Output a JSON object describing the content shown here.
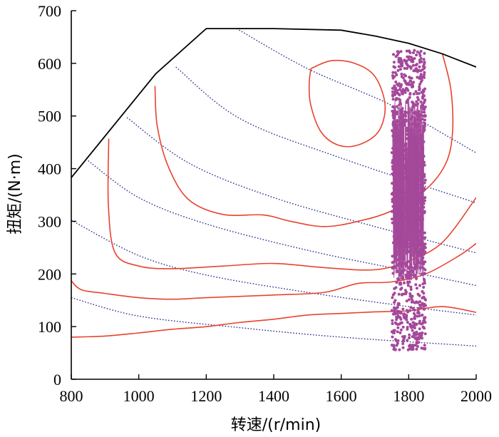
{
  "chart_data": {
    "type": "line",
    "title": "",
    "xlabel": "转速/(r/min)",
    "ylabel": "扭矩/(N·m)",
    "xlim": [
      800,
      2000
    ],
    "ylim": [
      0,
      700
    ],
    "x_ticks": [
      "800",
      "1000",
      "1200",
      "1400",
      "1600",
      "1800",
      "2000"
    ],
    "y_ticks": [
      "0",
      "100",
      "200",
      "300",
      "400",
      "500",
      "600",
      "700"
    ],
    "grid": false,
    "legend": "none",
    "colors": {
      "boundary": "#000000",
      "efficiency_contours": "#e8432e",
      "power_lines": "#2b2f8f",
      "operating_points": "#a4489a"
    },
    "series": [
      {
        "style": "solid-black",
        "kind": "max_torque_boundary",
        "points": [
          [
            800,
            383
          ],
          [
            1050,
            580
          ],
          [
            1200,
            666
          ],
          [
            1400,
            666
          ],
          [
            1600,
            663
          ],
          [
            1700,
            652
          ],
          [
            1800,
            638
          ],
          [
            1900,
            618
          ],
          [
            2000,
            593
          ]
        ]
      },
      {
        "style": "dotted-blue",
        "kind": "power_line",
        "points": [
          [
            1290,
            666
          ],
          [
            1500,
            590
          ],
          [
            1750,
            520
          ],
          [
            2000,
            430
          ]
        ]
      },
      {
        "style": "dotted-blue",
        "kind": "power_line",
        "points": [
          [
            1110,
            593
          ],
          [
            1300,
            495
          ],
          [
            1600,
            420
          ],
          [
            2000,
            335
          ]
        ]
      },
      {
        "style": "dotted-blue",
        "kind": "power_line",
        "points": [
          [
            965,
            497
          ],
          [
            1150,
            410
          ],
          [
            1400,
            345
          ],
          [
            1700,
            290
          ],
          [
            2000,
            240
          ]
        ]
      },
      {
        "style": "dotted-blue",
        "kind": "power_line",
        "points": [
          [
            850,
            415
          ],
          [
            1000,
            345
          ],
          [
            1200,
            295
          ],
          [
            1500,
            245
          ],
          [
            1800,
            205
          ],
          [
            2000,
            178
          ]
        ]
      },
      {
        "style": "dotted-blue",
        "kind": "power_line",
        "points": [
          [
            800,
            302
          ],
          [
            1000,
            235
          ],
          [
            1200,
            198
          ],
          [
            1500,
            165
          ],
          [
            1800,
            138
          ],
          [
            2000,
            122
          ]
        ]
      },
      {
        "style": "dotted-blue",
        "kind": "power_line",
        "points": [
          [
            800,
            155
          ],
          [
            1000,
            120
          ],
          [
            1300,
            98
          ],
          [
            1600,
            80
          ],
          [
            2000,
            63
          ]
        ]
      },
      {
        "style": "solid-red",
        "kind": "efficiency_contour",
        "points": [
          [
            1510,
            590
          ],
          [
            1570,
            605
          ],
          [
            1640,
            600
          ],
          [
            1700,
            575
          ],
          [
            1730,
            520
          ],
          [
            1710,
            470
          ],
          [
            1650,
            445
          ],
          [
            1590,
            445
          ],
          [
            1540,
            470
          ],
          [
            1510,
            520
          ],
          [
            1505,
            560
          ],
          [
            1510,
            590
          ]
        ]
      },
      {
        "style": "solid-red",
        "kind": "efficiency_contour",
        "points": [
          [
            1048,
            557
          ],
          [
            1055,
            480
          ],
          [
            1090,
            400
          ],
          [
            1150,
            340
          ],
          [
            1250,
            313
          ],
          [
            1370,
            312
          ],
          [
            1450,
            300
          ],
          [
            1550,
            290
          ],
          [
            1650,
            300
          ],
          [
            1750,
            320
          ],
          [
            1850,
            360
          ],
          [
            1910,
            410
          ],
          [
            1930,
            470
          ],
          [
            1925,
            550
          ],
          [
            1900,
            618
          ]
        ]
      },
      {
        "style": "solid-red",
        "kind": "efficiency_contour",
        "points": [
          [
            911,
            457
          ],
          [
            910,
            330
          ],
          [
            930,
            240
          ],
          [
            1000,
            215
          ],
          [
            1100,
            210
          ],
          [
            1250,
            215
          ],
          [
            1400,
            220
          ],
          [
            1550,
            212
          ],
          [
            1700,
            208
          ],
          [
            1800,
            225
          ],
          [
            1900,
            260
          ],
          [
            2000,
            345
          ]
        ]
      },
      {
        "style": "solid-red",
        "kind": "efficiency_contour",
        "points": [
          [
            800,
            187
          ],
          [
            830,
            170
          ],
          [
            900,
            163
          ],
          [
            1000,
            155
          ],
          [
            1100,
            152
          ],
          [
            1200,
            155
          ],
          [
            1400,
            160
          ],
          [
            1550,
            165
          ],
          [
            1650,
            182
          ],
          [
            1750,
            185
          ],
          [
            1850,
            200
          ],
          [
            1950,
            235
          ],
          [
            2000,
            258
          ]
        ]
      },
      {
        "style": "solid-red",
        "kind": "efficiency_contour",
        "points": [
          [
            800,
            80
          ],
          [
            900,
            82
          ],
          [
            1000,
            88
          ],
          [
            1100,
            95
          ],
          [
            1200,
            100
          ],
          [
            1300,
            108
          ],
          [
            1400,
            114
          ],
          [
            1500,
            122
          ],
          [
            1600,
            125
          ],
          [
            1700,
            128
          ],
          [
            1800,
            130
          ],
          [
            1900,
            138
          ],
          [
            2000,
            127
          ]
        ]
      },
      {
        "style": "magenta-scatter",
        "kind": "operating_points",
        "x_range": [
          1750,
          1850
        ],
        "y_range": [
          55,
          625
        ],
        "dense_y_range": [
          185,
          530
        ]
      }
    ]
  }
}
